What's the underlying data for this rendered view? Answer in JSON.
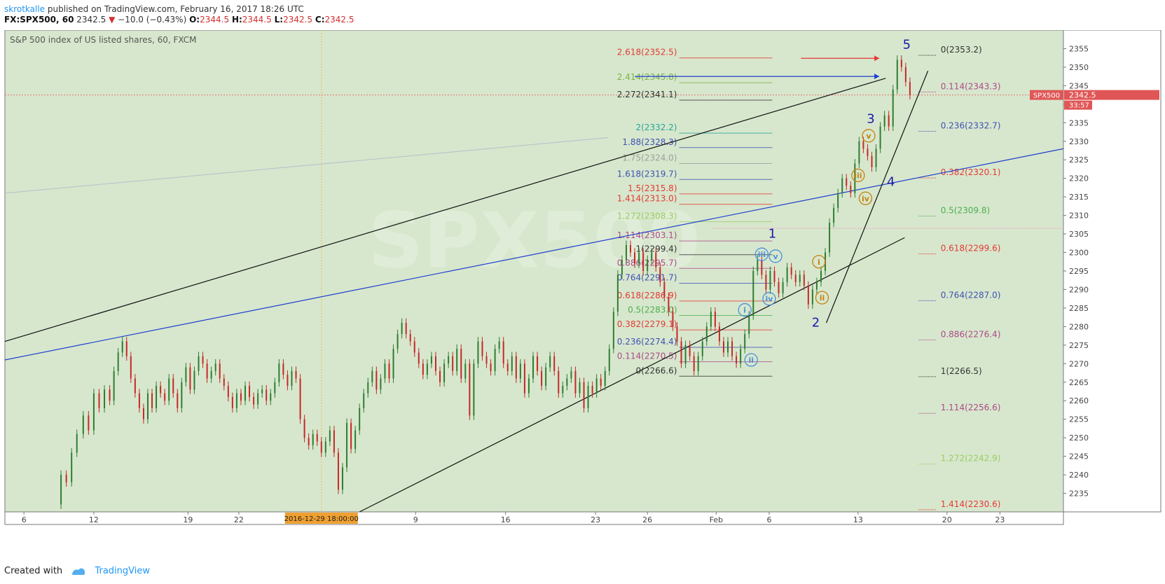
{
  "header": {
    "user": "skrotkalle",
    "published": "published on TradingView.com, February 16, 2017 18:26 UTC"
  },
  "info": {
    "symbol": "FX:SPX500, 60",
    "last": "2342.5",
    "arrow": "▼",
    "change": "−10.0 (−0.43%)",
    "o_label": "O:",
    "o": "2344.5",
    "h_label": "H:",
    "h": "2344.5",
    "l_label": "L:",
    "l": "2342.5",
    "c_label": "C:",
    "c": "2342.5"
  },
  "footer": {
    "created_with": "Created with",
    "brand": "TradingView"
  },
  "chart_data": {
    "type": "candlestick",
    "title": "S&P 500 index of US listed shares, 60, FXCM",
    "ylim": [
      2230,
      2360
    ],
    "yticks": [
      2235,
      2240,
      2245,
      2250,
      2255,
      2260,
      2265,
      2270,
      2275,
      2280,
      2285,
      2290,
      2295,
      2300,
      2305,
      2310,
      2315,
      2320,
      2325,
      2330,
      2335,
      2340,
      2345,
      2350,
      2355
    ],
    "x_ticks": [
      {
        "label": "6",
        "x": 0.018
      },
      {
        "label": "12",
        "x": 0.084
      },
      {
        "label": "19",
        "x": 0.173
      },
      {
        "label": "22",
        "x": 0.221
      },
      {
        "label": "9",
        "x": 0.388
      },
      {
        "label": "16",
        "x": 0.473
      },
      {
        "label": "23",
        "x": 0.558
      },
      {
        "label": "26",
        "x": 0.607
      },
      {
        "label": "Feb",
        "x": 0.672
      },
      {
        "label": "6",
        "x": 0.722
      },
      {
        "label": "13",
        "x": 0.806
      },
      {
        "label": "20",
        "x": 0.89
      },
      {
        "label": "23",
        "x": 0.94
      }
    ],
    "x_highlight": {
      "label": "2016-12-29 18:00:00",
      "x": 0.299
    },
    "last_price": {
      "symbol": "SPX500",
      "price": "2342.5",
      "countdown": "33:57",
      "value": 2342.5
    },
    "price_path": [
      [
        0.049,
        2232
      ],
      [
        0.053,
        2240
      ],
      [
        0.058,
        2238
      ],
      [
        0.063,
        2246
      ],
      [
        0.068,
        2251
      ],
      [
        0.074,
        2256
      ],
      [
        0.079,
        2252
      ],
      [
        0.084,
        2262
      ],
      [
        0.089,
        2258
      ],
      [
        0.094,
        2263
      ],
      [
        0.099,
        2260
      ],
      [
        0.103,
        2268
      ],
      [
        0.107,
        2273
      ],
      [
        0.111,
        2276
      ],
      [
        0.115,
        2272
      ],
      [
        0.119,
        2266
      ],
      [
        0.123,
        2262
      ],
      [
        0.127,
        2258
      ],
      [
        0.131,
        2255
      ],
      [
        0.135,
        2262
      ],
      [
        0.139,
        2258
      ],
      [
        0.143,
        2264
      ],
      [
        0.147,
        2262
      ],
      [
        0.151,
        2260
      ],
      [
        0.155,
        2266
      ],
      [
        0.159,
        2262
      ],
      [
        0.163,
        2258
      ],
      [
        0.167,
        2265
      ],
      [
        0.171,
        2269
      ],
      [
        0.175,
        2263
      ],
      [
        0.179,
        2268
      ],
      [
        0.183,
        2272
      ],
      [
        0.187,
        2270
      ],
      [
        0.191,
        2266
      ],
      [
        0.195,
        2268
      ],
      [
        0.199,
        2270
      ],
      [
        0.203,
        2266
      ],
      [
        0.207,
        2264
      ],
      [
        0.211,
        2261
      ],
      [
        0.215,
        2258
      ],
      [
        0.219,
        2262
      ],
      [
        0.223,
        2260
      ],
      [
        0.227,
        2264
      ],
      [
        0.231,
        2261
      ],
      [
        0.235,
        2259
      ],
      [
        0.239,
        2262
      ],
      [
        0.243,
        2263
      ],
      [
        0.247,
        2260
      ],
      [
        0.251,
        2262
      ],
      [
        0.255,
        2265
      ],
      [
        0.259,
        2270
      ],
      [
        0.263,
        2267
      ],
      [
        0.267,
        2264
      ],
      [
        0.271,
        2268
      ],
      [
        0.275,
        2266
      ],
      [
        0.279,
        2255
      ],
      [
        0.283,
        2250
      ],
      [
        0.287,
        2248
      ],
      [
        0.291,
        2251
      ],
      [
        0.295,
        2249
      ],
      [
        0.299,
        2246
      ],
      [
        0.303,
        2249
      ],
      [
        0.307,
        2252
      ],
      [
        0.311,
        2246
      ],
      [
        0.315,
        2236
      ],
      [
        0.319,
        2242
      ],
      [
        0.323,
        2254
      ],
      [
        0.327,
        2247
      ],
      [
        0.331,
        2252
      ],
      [
        0.335,
        2258
      ],
      [
        0.339,
        2262
      ],
      [
        0.343,
        2265
      ],
      [
        0.347,
        2268
      ],
      [
        0.351,
        2263
      ],
      [
        0.355,
        2266
      ],
      [
        0.359,
        2270
      ],
      [
        0.363,
        2266
      ],
      [
        0.367,
        2274
      ],
      [
        0.371,
        2278
      ],
      [
        0.375,
        2281
      ],
      [
        0.379,
        2278
      ],
      [
        0.383,
        2276
      ],
      [
        0.387,
        2273
      ],
      [
        0.391,
        2270
      ],
      [
        0.395,
        2267
      ],
      [
        0.399,
        2270
      ],
      [
        0.403,
        2272
      ],
      [
        0.407,
        2268
      ],
      [
        0.411,
        2265
      ],
      [
        0.415,
        2270
      ],
      [
        0.419,
        2272
      ],
      [
        0.423,
        2268
      ],
      [
        0.427,
        2274
      ],
      [
        0.431,
        2266
      ],
      [
        0.435,
        2270
      ],
      [
        0.439,
        2256
      ],
      [
        0.443,
        2270
      ],
      [
        0.447,
        2276
      ],
      [
        0.451,
        2272
      ],
      [
        0.455,
        2270
      ],
      [
        0.459,
        2268
      ],
      [
        0.463,
        2274
      ],
      [
        0.467,
        2276
      ],
      [
        0.471,
        2270
      ],
      [
        0.475,
        2268
      ],
      [
        0.479,
        2272
      ],
      [
        0.483,
        2266
      ],
      [
        0.487,
        2270
      ],
      [
        0.491,
        2262
      ],
      [
        0.495,
        2266
      ],
      [
        0.499,
        2272
      ],
      [
        0.503,
        2268
      ],
      [
        0.507,
        2264
      ],
      [
        0.511,
        2269
      ],
      [
        0.515,
        2272
      ],
      [
        0.519,
        2268
      ],
      [
        0.523,
        2262
      ],
      [
        0.527,
        2264
      ],
      [
        0.531,
        2266
      ],
      [
        0.535,
        2268
      ],
      [
        0.539,
        2262
      ],
      [
        0.543,
        2265
      ],
      [
        0.547,
        2258
      ],
      [
        0.551,
        2264
      ],
      [
        0.555,
        2262
      ],
      [
        0.559,
        2266
      ],
      [
        0.563,
        2264
      ],
      [
        0.567,
        2268
      ],
      [
        0.571,
        2274
      ],
      [
        0.575,
        2284
      ],
      [
        0.579,
        2294
      ],
      [
        0.583,
        2298
      ],
      [
        0.587,
        2302
      ],
      [
        0.591,
        2300
      ],
      [
        0.595,
        2297
      ],
      [
        0.599,
        2300
      ],
      [
        0.603,
        2295
      ],
      [
        0.607,
        2298
      ],
      [
        0.611,
        2300
      ],
      [
        0.615,
        2296
      ],
      [
        0.619,
        2292
      ],
      [
        0.623,
        2288
      ],
      [
        0.627,
        2284
      ],
      [
        0.631,
        2280
      ],
      [
        0.635,
        2276
      ],
      [
        0.639,
        2270
      ],
      [
        0.643,
        2275
      ],
      [
        0.647,
        2272
      ],
      [
        0.651,
        2268
      ],
      [
        0.655,
        2272
      ],
      [
        0.659,
        2276
      ],
      [
        0.663,
        2280
      ],
      [
        0.667,
        2284
      ],
      [
        0.671,
        2280
      ],
      [
        0.675,
        2276
      ],
      [
        0.679,
        2273
      ],
      [
        0.683,
        2276
      ],
      [
        0.687,
        2272
      ],
      [
        0.691,
        2270
      ],
      [
        0.695,
        2274
      ],
      [
        0.699,
        2278
      ],
      [
        0.703,
        2283
      ],
      [
        0.707,
        2295
      ],
      [
        0.711,
        2298
      ],
      [
        0.715,
        2294
      ],
      [
        0.719,
        2290
      ],
      [
        0.723,
        2295
      ],
      [
        0.727,
        2292
      ],
      [
        0.731,
        2289
      ],
      [
        0.735,
        2292
      ],
      [
        0.739,
        2296
      ],
      [
        0.743,
        2294
      ],
      [
        0.747,
        2292
      ],
      [
        0.751,
        2294
      ],
      [
        0.755,
        2291
      ],
      [
        0.759,
        2286
      ],
      [
        0.763,
        2290
      ],
      [
        0.767,
        2292
      ],
      [
        0.771,
        2295
      ],
      [
        0.775,
        2300
      ],
      [
        0.779,
        2308
      ],
      [
        0.783,
        2312
      ],
      [
        0.787,
        2316
      ],
      [
        0.791,
        2320
      ],
      [
        0.795,
        2318
      ],
      [
        0.799,
        2316
      ],
      [
        0.803,
        2324
      ],
      [
        0.807,
        2330
      ],
      [
        0.811,
        2328
      ],
      [
        0.815,
        2326
      ],
      [
        0.819,
        2323
      ],
      [
        0.823,
        2328
      ],
      [
        0.827,
        2334
      ],
      [
        0.831,
        2337
      ],
      [
        0.835,
        2334
      ],
      [
        0.839,
        2344
      ],
      [
        0.843,
        2352
      ],
      [
        0.847,
        2350
      ],
      [
        0.851,
        2346
      ],
      [
        0.855,
        2342.5
      ]
    ],
    "fib_left": [
      {
        "label": "2.618(2352.5)",
        "value": 2352.5,
        "color": "#e53935"
      },
      {
        "label": "2.414(2345.8)",
        "value": 2345.8,
        "color": "#7cb342"
      },
      {
        "label": "2.272(2341.1)",
        "value": 2341.1,
        "color": "#333333"
      },
      {
        "label": "2(2332.2)",
        "value": 2332.2,
        "color": "#26a69a"
      },
      {
        "label": "1.88(2328.3)",
        "value": 2328.3,
        "color": "#3f51b5"
      },
      {
        "label": "1.75(2324.0)",
        "value": 2324.0,
        "color": "#9e9e9e"
      },
      {
        "label": "1.618(2319.7)",
        "value": 2319.7,
        "color": "#3f51b5"
      },
      {
        "label": "1.5(2315.8)",
        "value": 2315.8,
        "color": "#e53935"
      },
      {
        "label": "1.414(2313.0)",
        "value": 2313.0,
        "color": "#e53935"
      },
      {
        "label": "1.272(2308.3)",
        "value": 2308.3,
        "color": "#9ccc65"
      },
      {
        "label": "1.114(2303.1)",
        "value": 2303.1,
        "color": "#ad4a8a"
      },
      {
        "label": "1(2299.4)",
        "value": 2299.4,
        "color": "#333333"
      },
      {
        "label": "0.886(2295.7)",
        "value": 2295.7,
        "color": "#ad4a8a"
      },
      {
        "label": "0.764(2291.7)",
        "value": 2291.7,
        "color": "#3f51b5"
      },
      {
        "label": "0.618(2286.9)",
        "value": 2286.9,
        "color": "#e53935"
      },
      {
        "label": "0.5(2283.0)",
        "value": 2283.0,
        "color": "#4caf50"
      },
      {
        "label": "0.382(2279.1)",
        "value": 2279.1,
        "color": "#e53935"
      },
      {
        "label": "0.236(2274.4)",
        "value": 2274.4,
        "color": "#3f51b5"
      },
      {
        "label": "0.114(2270.5)",
        "value": 2270.5,
        "color": "#ad4a8a"
      },
      {
        "label": "0(2266.6)",
        "value": 2266.6,
        "color": "#333333"
      }
    ],
    "fib_right": [
      {
        "label": "0(2353.2)",
        "value": 2353.2,
        "color": "#333333"
      },
      {
        "label": "0.114(2343.3)",
        "value": 2343.3,
        "color": "#ad4a8a"
      },
      {
        "label": "0.236(2332.7)",
        "value": 2332.7,
        "color": "#3f51b5"
      },
      {
        "label": "0.382(2320.1)",
        "value": 2320.1,
        "color": "#e53935"
      },
      {
        "label": "0.5(2309.8)",
        "value": 2309.8,
        "color": "#4caf50"
      },
      {
        "label": "0.618(2299.6)",
        "value": 2299.6,
        "color": "#e53935"
      },
      {
        "label": "0.764(2287.0)",
        "value": 2287.0,
        "color": "#3f51b5"
      },
      {
        "label": "0.886(2276.4)",
        "value": 2276.4,
        "color": "#ad4a8a"
      },
      {
        "label": "1(2266.5)",
        "value": 2266.5,
        "color": "#333333"
      },
      {
        "label": "1.114(2256.6)",
        "value": 2256.6,
        "color": "#ad4a8a"
      },
      {
        "label": "1.272(2242.9)",
        "value": 2242.9,
        "color": "#9ccc65"
      },
      {
        "label": "1.414(2230.6)",
        "value": 2230.6,
        "color": "#e53935"
      }
    ],
    "trendlines": [
      {
        "x1": 0.0,
        "y1": 2276,
        "x2": 0.832,
        "y2": 2347,
        "color": "#111111"
      },
      {
        "x1": 0.0,
        "y1": 2271,
        "x2": 1.0,
        "y2": 2328,
        "color": "#1e3fd0"
      },
      {
        "x1": 0.335,
        "y1": 2230,
        "x2": 0.85,
        "y2": 2304,
        "color": "#111111"
      },
      {
        "x1": 0.776,
        "y1": 2281,
        "x2": 0.872,
        "y2": 2349,
        "color": "#111111"
      },
      {
        "x1": 0.0,
        "y1": 2316,
        "x2": 0.57,
        "y2": 2331,
        "color": "#b9c5cc"
      }
    ],
    "elliott_major": [
      {
        "label": "1",
        "x": 0.725,
        "value": 2304,
        "color": "#1a1aa6"
      },
      {
        "label": "2",
        "x": 0.766,
        "value": 2280,
        "color": "#1a1aa6"
      },
      {
        "label": "3",
        "x": 0.818,
        "value": 2335,
        "color": "#1a1aa6"
      },
      {
        "label": "4",
        "x": 0.837,
        "value": 2318,
        "color": "#1a1aa6"
      },
      {
        "label": "5",
        "x": 0.852,
        "value": 2355,
        "color": "#1a1aa6"
      }
    ],
    "elliott_minor": [
      {
        "label": "i",
        "x": 0.699,
        "value": 2284.5,
        "color": "#4a90d9"
      },
      {
        "label": "ii",
        "x": 0.705,
        "value": 2271.0,
        "color": "#4a90d9"
      },
      {
        "label": "iii",
        "x": 0.715,
        "value": 2299.5,
        "color": "#4a90d9"
      },
      {
        "label": "iv",
        "x": 0.722,
        "value": 2287.5,
        "color": "#4a90d9"
      },
      {
        "label": "v",
        "x": 0.728,
        "value": 2299.0,
        "color": "#4a90d9"
      },
      {
        "label": "i",
        "x": 0.769,
        "value": 2297.5,
        "color": "#c6800f"
      },
      {
        "label": "ii",
        "x": 0.772,
        "value": 2287.8,
        "color": "#c6800f"
      },
      {
        "label": "iii",
        "x": 0.806,
        "value": 2320.8,
        "color": "#c6800f"
      },
      {
        "label": "iv",
        "x": 0.813,
        "value": 2314.6,
        "color": "#c6800f"
      },
      {
        "label": "v",
        "x": 0.816,
        "value": 2331.5,
        "color": "#c6800f"
      }
    ],
    "arrows": [
      {
        "x1": 0.595,
        "y1": 2347.5,
        "x2": 0.826,
        "y2": 2347.5,
        "color": "#1e3fd0"
      },
      {
        "x1": 0.752,
        "y1": 2352.4,
        "x2": 0.826,
        "y2": 2352.4,
        "color": "#e53935"
      }
    ],
    "hlines": [
      {
        "value": 2342.5,
        "color": "#e57373"
      },
      {
        "value": 2306.5,
        "x_start": 0.668,
        "color": "#e8a0c0"
      }
    ],
    "watermark": "SPX500"
  }
}
